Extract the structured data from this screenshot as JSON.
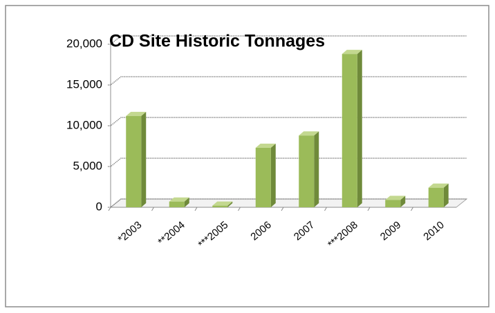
{
  "chart_data": {
    "type": "bar3d",
    "title": "CD Site Historic Tonnages",
    "categories": [
      "*2003",
      "**2004",
      "***2005",
      "2006",
      "2007",
      "***2008",
      "2009",
      "2010"
    ],
    "values": [
      11200,
      700,
      200,
      7300,
      8800,
      18800,
      900,
      2400
    ],
    "color": "#9bbb59",
    "ylim": [
      0,
      20000
    ],
    "yticks": [
      0,
      {
        "value": 5000,
        "label": "5,000"
      },
      {
        "value": 10000,
        "label": "10,000"
      },
      {
        "value": 15000,
        "label": "15,000"
      },
      {
        "value": 20000,
        "label": "20,000"
      }
    ],
    "grid": true
  }
}
